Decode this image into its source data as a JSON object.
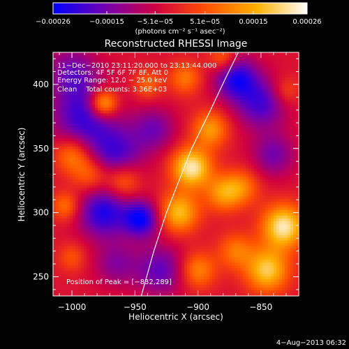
{
  "chart_data": {
    "type": "heatmap",
    "title": "Reconstructed RHESSI Image",
    "xlabel": "Heliocentric X (arcsec)",
    "ylabel": "Heliocentric Y (arcsec)",
    "xlim": [
      -1015,
      -820
    ],
    "ylim": [
      235,
      425
    ],
    "x_ticks": [
      -1000,
      -950,
      -900,
      -850
    ],
    "x_tick_labels": [
      "−1000",
      "−950",
      "−900",
      "−850"
    ],
    "y_ticks": [
      250,
      300,
      350,
      400
    ],
    "y_tick_labels": [
      "250",
      "300",
      "350",
      "400"
    ],
    "colorbar": {
      "range": [
        -0.00026,
        0.00026
      ],
      "tick_values": [
        -0.00026,
        -0.00015,
        -5.1e-05,
        5.1e-05,
        0.00015,
        0.00026
      ],
      "tick_labels": [
        "−0.00026",
        "−0.00015",
        "−5.1e−05",
        "5.1e−05",
        "0.00015",
        "0.00026"
      ],
      "unit_label": "(photons cm⁻² s⁻¹ asec⁻²)",
      "stops": [
        "#0000ff",
        "#7000b0",
        "#d00040",
        "#ff5000",
        "#ffb000",
        "#ffffff"
      ]
    },
    "annotations": [
      "11−Dec−2010 23:11:20.000 to 23:13:44.000",
      "Detectors: 4F 5F 6F 7F 8F, Att 0",
      "Energy Range: 12.0 − 25.0 keV",
      "Clean    Total counts: 3.36E+03"
    ],
    "peak_label": "Position of Peak = [−832,289]",
    "peak": [
      -832,
      289
    ],
    "limb": [
      [
        -945,
        235
      ],
      [
        -935,
        270
      ],
      [
        -925,
        300
      ],
      [
        -915,
        325
      ],
      [
        -905,
        350
      ],
      [
        -890,
        380
      ],
      [
        -878,
        405
      ],
      [
        -868,
        425
      ]
    ],
    "sources": [
      {
        "x": -990,
        "y": 375,
        "v": -0.00018,
        "s": 18
      },
      {
        "x": -1000,
        "y": 410,
        "v": -0.00012,
        "s": 14
      },
      {
        "x": -965,
        "y": 345,
        "v": -0.00016,
        "s": 15
      },
      {
        "x": -975,
        "y": 300,
        "v": -0.0002,
        "s": 14
      },
      {
        "x": -945,
        "y": 295,
        "v": -0.00022,
        "s": 10
      },
      {
        "x": -930,
        "y": 255,
        "v": -0.00014,
        "s": 14
      },
      {
        "x": -965,
        "y": 260,
        "v": -0.0001,
        "s": 12
      },
      {
        "x": -870,
        "y": 405,
        "v": -0.0002,
        "s": 12
      },
      {
        "x": -850,
        "y": 385,
        "v": -0.00016,
        "s": 14
      },
      {
        "x": -840,
        "y": 345,
        "v": -0.00012,
        "s": 12
      },
      {
        "x": -935,
        "y": 365,
        "v": -0.00012,
        "s": 12
      },
      {
        "x": -975,
        "y": 385,
        "v": 0.00024,
        "s": 8
      },
      {
        "x": -1000,
        "y": 345,
        "v": 0.00014,
        "s": 10
      },
      {
        "x": -985,
        "y": 330,
        "v": 0.00012,
        "s": 10
      },
      {
        "x": -960,
        "y": 325,
        "v": 0.00014,
        "s": 10
      },
      {
        "x": -1005,
        "y": 305,
        "v": 0.00012,
        "s": 8
      },
      {
        "x": -905,
        "y": 335,
        "v": 0.00026,
        "s": 11
      },
      {
        "x": -915,
        "y": 300,
        "v": 0.0002,
        "s": 11
      },
      {
        "x": -890,
        "y": 365,
        "v": 0.00016,
        "s": 10
      },
      {
        "x": -880,
        "y": 315,
        "v": 0.00015,
        "s": 10
      },
      {
        "x": -865,
        "y": 320,
        "v": 0.00012,
        "s": 10
      },
      {
        "x": -832,
        "y": 289,
        "v": 0.00026,
        "s": 12
      },
      {
        "x": -845,
        "y": 255,
        "v": 0.00022,
        "s": 12
      },
      {
        "x": -900,
        "y": 255,
        "v": 0.00014,
        "s": 10
      },
      {
        "x": -870,
        "y": 270,
        "v": 0.00012,
        "s": 10
      },
      {
        "x": -910,
        "y": 405,
        "v": 0.00012,
        "s": 9
      },
      {
        "x": -880,
        "y": 420,
        "v": 0.00012,
        "s": 8
      },
      {
        "x": -940,
        "y": 400,
        "v": 0.0001,
        "s": 8
      },
      {
        "x": -1000,
        "y": 265,
        "v": 8e-05,
        "s": 8
      },
      {
        "x": -830,
        "y": 395,
        "v": 8e-05,
        "s": 8
      }
    ]
  },
  "footer_date": "4−Aug−2013 06:32"
}
